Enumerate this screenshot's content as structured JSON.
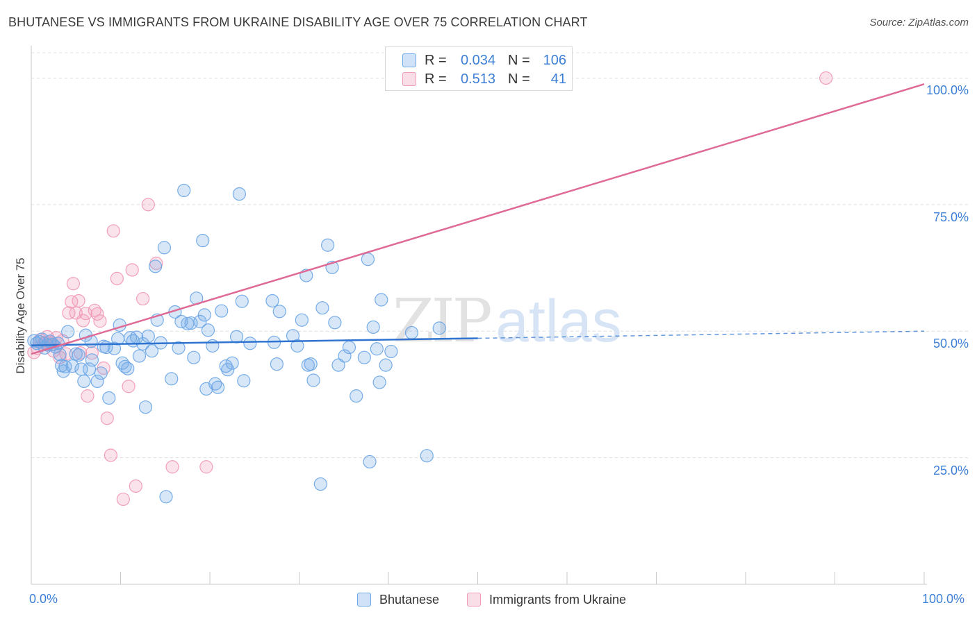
{
  "title": "BHUTANESE VS IMMIGRANTS FROM UKRAINE DISABILITY AGE OVER 75 CORRELATION CHART",
  "source": "Source: ZipAtlas.com",
  "watermark": {
    "zip": "ZIP",
    "atlas": "atlas"
  },
  "legend_top": {
    "rows": [
      {
        "r_label": "R =",
        "r_value": "0.034",
        "n_label": "N =",
        "n_value": "106",
        "color": "#6fa8e6"
      },
      {
        "r_label": "R =",
        "r_value": "0.513",
        "n_label": "N =",
        "n_value": "41",
        "color": "#f19bb6"
      }
    ]
  },
  "legend_bottom": [
    {
      "label": "Bhutanese",
      "color": "#6fa8e6"
    },
    {
      "label": "Immigrants from Ukraine",
      "color": "#f19bb6"
    }
  ],
  "chart_data": {
    "type": "scatter",
    "title": "BHUTANESE VS IMMIGRANTS FROM UKRAINE DISABILITY AGE OVER 75 CORRELATION CHART",
    "xlabel": "",
    "ylabel": "Disability Age Over 75",
    "xlim": [
      0,
      100
    ],
    "ylim": [
      0,
      105
    ],
    "x_tick_labels": [
      "0.0%",
      "100.0%"
    ],
    "y_ticks": [
      25,
      50,
      75,
      100
    ],
    "y_tick_labels": [
      "25.0%",
      "50.0%",
      "75.0%",
      "100.0%"
    ],
    "grid": true,
    "legend_position": "top-center",
    "series": [
      {
        "name": "Bhutanese",
        "color": "#6fa8e6",
        "line_color": "#2f74d0",
        "trend": {
          "x_start": 0,
          "y_start": 47.2,
          "x_solid_end": 50,
          "x_end": 100,
          "y_end": 50.0
        },
        "points": [
          [
            0.3,
            48.1
          ],
          [
            0.6,
            47.6
          ],
          [
            0.9,
            47.9
          ],
          [
            1.2,
            48.4
          ],
          [
            1.5,
            46.7
          ],
          [
            1.8,
            47.3
          ],
          [
            2.1,
            48.0
          ],
          [
            2.4,
            47.4
          ],
          [
            2.7,
            46.9
          ],
          [
            3.0,
            47.6
          ],
          [
            3.2,
            45.4
          ],
          [
            3.4,
            43.2
          ],
          [
            3.6,
            42.1
          ],
          [
            4.1,
            49.9
          ],
          [
            4.6,
            43.1
          ],
          [
            5.0,
            45.5
          ],
          [
            5.3,
            45.3
          ],
          [
            5.6,
            42.5
          ],
          [
            5.9,
            40.1
          ],
          [
            6.1,
            49.2
          ],
          [
            6.5,
            42.5
          ],
          [
            6.7,
            48.0
          ],
          [
            6.8,
            44.3
          ],
          [
            7.4,
            40.1
          ],
          [
            7.8,
            41.7
          ],
          [
            8.1,
            47.0
          ],
          [
            8.4,
            46.8
          ],
          [
            8.7,
            36.8
          ],
          [
            9.3,
            46.6
          ],
          [
            9.7,
            48.5
          ],
          [
            9.9,
            51.2
          ],
          [
            10.2,
            43.7
          ],
          [
            10.5,
            43.0
          ],
          [
            10.8,
            42.6
          ],
          [
            11.1,
            48.7
          ],
          [
            11.4,
            48.1
          ],
          [
            11.8,
            48.8
          ],
          [
            12.1,
            45.1
          ],
          [
            12.5,
            47.5
          ],
          [
            12.8,
            35.0
          ],
          [
            13.1,
            49.0
          ],
          [
            13.5,
            46.1
          ],
          [
            13.9,
            62.8
          ],
          [
            14.1,
            52.2
          ],
          [
            14.5,
            47.7
          ],
          [
            14.9,
            66.5
          ],
          [
            15.1,
            17.3
          ],
          [
            15.7,
            40.6
          ],
          [
            16.1,
            53.8
          ],
          [
            16.5,
            46.7
          ],
          [
            16.8,
            51.9
          ],
          [
            17.1,
            77.8
          ],
          [
            17.5,
            51.5
          ],
          [
            17.9,
            51.6
          ],
          [
            18.2,
            44.8
          ],
          [
            18.5,
            56.5
          ],
          [
            18.9,
            51.9
          ],
          [
            19.2,
            67.9
          ],
          [
            19.4,
            53.2
          ],
          [
            19.6,
            38.6
          ],
          [
            19.8,
            50.2
          ],
          [
            20.3,
            47.1
          ],
          [
            20.6,
            39.6
          ],
          [
            20.9,
            38.9
          ],
          [
            21.3,
            54.0
          ],
          [
            21.8,
            43.1
          ],
          [
            22.0,
            42.4
          ],
          [
            22.5,
            43.7
          ],
          [
            23.0,
            48.9
          ],
          [
            23.3,
            77.1
          ],
          [
            23.6,
            55.9
          ],
          [
            23.8,
            40.2
          ],
          [
            24.5,
            47.6
          ],
          [
            27.0,
            56.0
          ],
          [
            27.2,
            47.8
          ],
          [
            27.5,
            43.5
          ],
          [
            27.8,
            53.9
          ],
          [
            29.3,
            49.1
          ],
          [
            29.8,
            47.1
          ],
          [
            30.3,
            52.2
          ],
          [
            30.8,
            61.0
          ],
          [
            31.0,
            43.3
          ],
          [
            31.3,
            43.5
          ],
          [
            31.6,
            40.3
          ],
          [
            32.6,
            54.6
          ],
          [
            33.2,
            67.0
          ],
          [
            33.7,
            62.6
          ],
          [
            34.0,
            51.7
          ],
          [
            34.4,
            43.3
          ],
          [
            35.1,
            45.1
          ],
          [
            35.6,
            46.8
          ],
          [
            36.4,
            37.2
          ],
          [
            37.3,
            44.8
          ],
          [
            37.7,
            64.2
          ],
          [
            37.9,
            24.2
          ],
          [
            38.3,
            50.8
          ],
          [
            38.7,
            46.5
          ],
          [
            39.0,
            39.9
          ],
          [
            39.2,
            56.2
          ],
          [
            39.7,
            43.3
          ],
          [
            40.3,
            46.0
          ],
          [
            42.6,
            49.7
          ],
          [
            44.3,
            25.4
          ],
          [
            45.7,
            50.6
          ],
          [
            32.4,
            19.8
          ],
          [
            3.8,
            43.0
          ]
        ]
      },
      {
        "name": "Immigrants from Ukraine",
        "color": "#f19bb6",
        "line_color": "#e06a96",
        "trend": {
          "x_start": 0,
          "y_start": 45.5,
          "x_solid_end": 100,
          "x_end": 100,
          "y_end": 98.8
        },
        "points": [
          [
            0.3,
            45.8
          ],
          [
            0.7,
            46.6
          ],
          [
            1.0,
            48.3
          ],
          [
            1.4,
            47.6
          ],
          [
            1.8,
            48.9
          ],
          [
            2.2,
            47.3
          ],
          [
            2.5,
            46.1
          ],
          [
            2.8,
            48.7
          ],
          [
            3.2,
            44.8
          ],
          [
            3.5,
            48.1
          ],
          [
            3.9,
            45.5
          ],
          [
            4.2,
            53.6
          ],
          [
            4.5,
            55.8
          ],
          [
            4.7,
            59.4
          ],
          [
            5.0,
            53.6
          ],
          [
            5.3,
            56.0
          ],
          [
            5.5,
            45.7
          ],
          [
            5.8,
            52.1
          ],
          [
            6.1,
            53.5
          ],
          [
            6.3,
            37.2
          ],
          [
            6.8,
            45.7
          ],
          [
            7.1,
            54.1
          ],
          [
            7.4,
            53.4
          ],
          [
            7.7,
            52.0
          ],
          [
            8.1,
            42.7
          ],
          [
            8.5,
            32.8
          ],
          [
            8.9,
            25.5
          ],
          [
            9.2,
            69.8
          ],
          [
            9.6,
            60.4
          ],
          [
            10.3,
            16.8
          ],
          [
            10.9,
            39.1
          ],
          [
            11.3,
            62.1
          ],
          [
            11.7,
            19.4
          ],
          [
            12.5,
            56.4
          ],
          [
            13.1,
            75.0
          ],
          [
            14.0,
            63.4
          ],
          [
            15.8,
            23.2
          ],
          [
            19.6,
            23.2
          ],
          [
            1.6,
            47.8
          ],
          [
            2.0,
            47.9
          ],
          [
            89.0,
            100.0
          ]
        ]
      }
    ]
  }
}
